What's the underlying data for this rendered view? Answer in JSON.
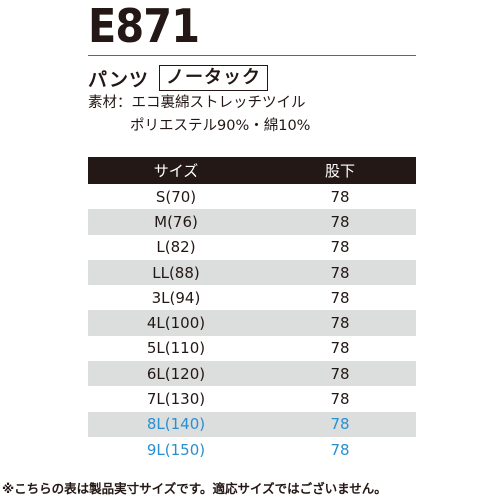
{
  "model": "E871",
  "product_type": "パンツ",
  "tuck": "ノータック",
  "material": {
    "line1": "素材：エコ裏綿ストレッチツイル",
    "line2": "ポリエステル90%・綿10%"
  },
  "table": {
    "headers": {
      "size": "サイズ",
      "inseam": "股下"
    },
    "rows": [
      {
        "size": "S(70)",
        "inseam": "78"
      },
      {
        "size": "M(76)",
        "inseam": "78"
      },
      {
        "size": "L(82)",
        "inseam": "78"
      },
      {
        "size": "LL(88)",
        "inseam": "78"
      },
      {
        "size": "3L(94)",
        "inseam": "78"
      },
      {
        "size": "4L(100)",
        "inseam": "78"
      },
      {
        "size": "5L(110)",
        "inseam": "78"
      },
      {
        "size": "6L(120)",
        "inseam": "78"
      },
      {
        "size": "7L(130)",
        "inseam": "78"
      },
      {
        "size": "8L(140)",
        "inseam": "78"
      },
      {
        "size": "9L(150)",
        "inseam": "78"
      }
    ]
  },
  "footnote": "※こちらの表は製品実寸サイズです。適応サイズではございません。",
  "colors": {
    "text": "#231815",
    "header_bg": "#231815",
    "stripe": "#dcdddd",
    "highlight": "#2a8fd0"
  }
}
